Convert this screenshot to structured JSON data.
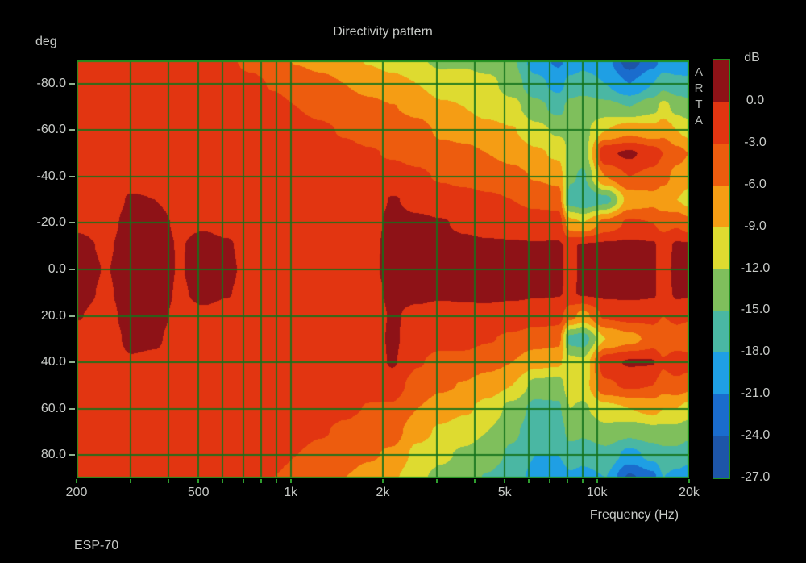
{
  "title": "Directivity pattern",
  "footer": "ESP-70",
  "watermark_letters": [
    "A",
    "R",
    "T",
    "A"
  ],
  "y_axis": {
    "unit": "deg",
    "ticks": [
      {
        "v": -80,
        "label": "-80.0"
      },
      {
        "v": -60,
        "label": "-60.0"
      },
      {
        "v": -40,
        "label": "-40.0"
      },
      {
        "v": -20,
        "label": "-20.0"
      },
      {
        "v": 0,
        "label": "0.0"
      },
      {
        "v": 20,
        "label": "20.0"
      },
      {
        "v": 40,
        "label": "40.0"
      },
      {
        "v": 60,
        "label": "60.0"
      },
      {
        "v": 80,
        "label": "80.0"
      }
    ]
  },
  "x_axis": {
    "label": "Frequency (Hz)",
    "ticks": [
      {
        "v": 200,
        "label": "200"
      },
      {
        "v": 500,
        "label": "500"
      },
      {
        "v": 1000,
        "label": "1k"
      },
      {
        "v": 2000,
        "label": "2k"
      },
      {
        "v": 5000,
        "label": "5k"
      },
      {
        "v": 10000,
        "label": "10k"
      },
      {
        "v": 20000,
        "label": "20k"
      }
    ]
  },
  "colorbar": {
    "unit": "dB",
    "tick_labels": [
      "0.0",
      "-3.0",
      "-6.0",
      "-9.0",
      "-12.0",
      "-15.0",
      "-18.0",
      "-21.0",
      "-24.0",
      "-27.0"
    ],
    "colors": [
      "#8e1217",
      "#e23511",
      "#ed5c0e",
      "#f59d14",
      "#dedb30",
      "#7fbf5c",
      "#4ab7a3",
      "#1f9fe4",
      "#1a6ccd",
      "#1d55a8"
    ]
  },
  "chart_data": {
    "type": "heatmap",
    "title": "Directivity pattern",
    "xlabel": "Frequency (Hz)",
    "ylabel": "deg",
    "zlabel": "dB",
    "x_scale": "log",
    "freq_range_hz": [
      200,
      20000
    ],
    "angle_range_deg": [
      -90,
      90
    ],
    "z_max_db": 3,
    "z_min_db": -27,
    "band_step_db": 3,
    "legend_position": "right",
    "grid": true,
    "grid_color": "#14721c",
    "frame_color": "#1f8f1f",
    "background": "#000000",
    "palette_hex": [
      "#8e1217",
      "#e23511",
      "#ed5c0e",
      "#f59d14",
      "#dedb30",
      "#7fbf5c",
      "#4ab7a3",
      "#1f9fe4",
      "#1a6ccd",
      "#1d55a8"
    ],
    "grid_lines_hz": [
      300,
      400,
      500,
      600,
      700,
      800,
      900,
      1000,
      2000,
      3000,
      4000,
      5000,
      6000,
      7000,
      8000,
      9000,
      10000
    ],
    "tick_marks_hz": [
      200,
      300,
      400,
      500,
      600,
      700,
      800,
      900,
      1000,
      2000,
      3000,
      4000,
      5000,
      6000,
      7000,
      8000,
      9000,
      10000,
      20000
    ],
    "grid_lines_deg": [
      -80,
      -60,
      -40,
      -20,
      0,
      20,
      40,
      60,
      80
    ],
    "angles_deg": [
      -90,
      -80,
      -70,
      -60,
      -50,
      -40,
      -30,
      -20,
      -10,
      0,
      10,
      20,
      30,
      40,
      50,
      60,
      70,
      80,
      90
    ],
    "frequencies_hz": [
      200,
      250,
      300,
      360,
      430,
      520,
      620,
      740,
      880,
      1050,
      1250,
      1500,
      1800,
      2150,
      2600,
      3100,
      3700,
      4400,
      5300,
      6300,
      7500,
      8200,
      9000,
      10700,
      12800,
      15300,
      16500,
      18300,
      20000
    ],
    "series_db": [
      [
        -1.5,
        -1.5,
        -1.5,
        -1.5,
        -1.5,
        -1.4,
        -1.1,
        -0.4,
        0.6,
        1.0,
        0.7,
        0.1,
        -0.8,
        -1.3,
        -1.5,
        -1.5,
        -1.5,
        -1.5,
        -1.5
      ],
      [
        -1.5,
        -1.5,
        -1.5,
        -1.5,
        -1.5,
        -1.4,
        -1.2,
        -0.8,
        -0.3,
        -0.1,
        -0.3,
        -0.7,
        -1.1,
        -1.4,
        -1.5,
        -1.5,
        -1.5,
        -1.5,
        -1.5
      ],
      [
        -1.5,
        -1.5,
        -1.5,
        -1.5,
        -1.3,
        -0.8,
        0.2,
        0.8,
        1.2,
        1.4,
        1.2,
        0.9,
        0.5,
        -0.2,
        -1.0,
        -1.4,
        -1.5,
        -1.5,
        -1.5
      ],
      [
        -1.5,
        -1.5,
        -1.5,
        -1.5,
        -1.3,
        -0.9,
        0.0,
        0.7,
        1.1,
        1.3,
        1.1,
        0.8,
        0.3,
        -0.4,
        -1.1,
        -1.4,
        -1.5,
        -1.5,
        -1.5
      ],
      [
        -1.5,
        -1.5,
        -1.5,
        -1.5,
        -1.4,
        -1.2,
        -0.7,
        -0.3,
        -0.1,
        -0.1,
        -0.2,
        -0.5,
        -0.9,
        -1.3,
        -1.5,
        -1.5,
        -1.5,
        -1.5,
        -1.5
      ],
      [
        -1.6,
        -1.5,
        -1.5,
        -1.5,
        -1.5,
        -1.3,
        -0.9,
        -0.2,
        0.5,
        0.7,
        0.4,
        -0.3,
        -1.0,
        -1.4,
        -1.5,
        -1.5,
        -1.5,
        -1.6,
        -1.7
      ],
      [
        -2.6,
        -1.8,
        -1.5,
        -1.5,
        -1.5,
        -1.4,
        -1.1,
        -0.5,
        0.2,
        0.4,
        0.1,
        -0.6,
        -1.2,
        -1.5,
        -1.5,
        -1.5,
        -1.6,
        -1.7,
        -1.9
      ],
      [
        -3.6,
        -2.4,
        -1.9,
        -1.6,
        -1.5,
        -1.5,
        -1.3,
        -1.0,
        -0.8,
        -0.7,
        -0.8,
        -1.0,
        -1.3,
        -1.5,
        -1.5,
        -1.6,
        -1.7,
        -2.0,
        -2.4
      ],
      [
        -4.8,
        -3.2,
        -2.3,
        -1.9,
        -1.6,
        -1.5,
        -1.4,
        -1.1,
        -0.9,
        -0.8,
        -0.9,
        -1.1,
        -1.3,
        -1.5,
        -1.6,
        -1.7,
        -1.9,
        -2.4,
        -3.0
      ],
      [
        -6.2,
        -4.2,
        -3.0,
        -2.2,
        -1.8,
        -1.6,
        -1.4,
        -1.2,
        -1.0,
        -0.9,
        -1.0,
        -1.2,
        -1.4,
        -1.6,
        -1.7,
        -1.9,
        -2.3,
        -3.0,
        -3.8
      ],
      [
        -7.0,
        -5.0,
        -3.6,
        -2.6,
        -2.0,
        -1.7,
        -1.5,
        -1.3,
        -1.1,
        -1.0,
        -1.1,
        -1.3,
        -1.5,
        -1.7,
        -1.9,
        -2.2,
        -2.8,
        -3.7,
        -4.8
      ],
      [
        -8.0,
        -6.0,
        -4.4,
        -3.2,
        -2.4,
        -1.9,
        -1.6,
        -1.4,
        -1.2,
        -1.1,
        -1.2,
        -1.4,
        -1.6,
        -1.8,
        -2.1,
        -2.6,
        -3.4,
        -4.6,
        -6.0
      ],
      [
        -9.2,
        -7.0,
        -5.2,
        -3.8,
        -2.8,
        -2.1,
        -1.7,
        -1.2,
        -0.8,
        -0.6,
        -0.8,
        -1.2,
        -1.5,
        -1.8,
        -2.4,
        -3.1,
        -4.2,
        -5.6,
        -7.3
      ],
      [
        -10.2,
        -7.9,
        -5.9,
        -4.4,
        -3.2,
        -2.0,
        0.2,
        0.8,
        0.9,
        0.8,
        0.4,
        0.2,
        0.4,
        0.3,
        -1.8,
        -3.3,
        -4.8,
        -6.5,
        -8.5
      ],
      [
        -11.6,
        -9.0,
        -6.8,
        -5.0,
        -3.8,
        -2.5,
        -0.8,
        0.5,
        0.9,
        0.9,
        0.5,
        -0.5,
        -1.6,
        -2.8,
        -4.2,
        -6.0,
        -8.0,
        -10.0,
        -11.5
      ],
      [
        -12.6,
        -10.5,
        -8.5,
        -6.5,
        -5.0,
        -3.3,
        -1.5,
        0.2,
        0.8,
        0.8,
        0.3,
        -0.8,
        -2.2,
        -3.8,
        -5.5,
        -7.5,
        -9.5,
        -11.5,
        -12.8
      ],
      [
        -12.5,
        -10.5,
        -9.0,
        -7.0,
        -5.3,
        -3.8,
        -2.0,
        -0.5,
        0.6,
        0.9,
        0.4,
        -0.6,
        -2.0,
        -4.0,
        -6.2,
        -8.5,
        -10.8,
        -12.5,
        -14.0
      ],
      [
        -13.5,
        -11.0,
        -10.2,
        -8.0,
        -6.0,
        -4.3,
        -2.5,
        -1.0,
        0.4,
        1.0,
        0.6,
        -0.8,
        -2.8,
        -5.0,
        -7.5,
        -10.0,
        -12.0,
        -13.8,
        -15.2
      ],
      [
        -14.5,
        -13.5,
        -11.0,
        -8.8,
        -6.8,
        -5.0,
        -3.0,
        -1.2,
        0.3,
        1.0,
        0.5,
        -1.2,
        -3.5,
        -6.0,
        -9.0,
        -13.0,
        -14.5,
        -15.5,
        -16.5
      ],
      [
        -19.5,
        -17.0,
        -14.0,
        -11.0,
        -8.5,
        -6.2,
        -3.8,
        -1.5,
        0.2,
        0.8,
        0.3,
        -1.5,
        -4.5,
        -8.0,
        -13.0,
        -16.0,
        -16.5,
        -18.0,
        -19.0
      ],
      [
        -21.5,
        -19.0,
        -16.0,
        -12.5,
        -9.5,
        -7.0,
        -4.2,
        -1.5,
        0.3,
        0.8,
        0.2,
        -1.8,
        -5.0,
        -8.5,
        -13.5,
        -15.5,
        -16.5,
        -18.0,
        -20.0
      ],
      [
        -20.0,
        -17.0,
        -14.0,
        -12.5,
        -13.0,
        -14.5,
        -16.5,
        -8.0,
        -0.5,
        -1.2,
        -0.5,
        -5.0,
        -16.0,
        -11.0,
        -10.0,
        -12.0,
        -14.0,
        -16.5,
        -18.5
      ],
      [
        -19.0,
        -16.5,
        -13.5,
        -13.0,
        -14.0,
        -15.5,
        -17.5,
        -9.0,
        0.4,
        1.0,
        0.5,
        -7.0,
        -16.5,
        -11.5,
        -10.5,
        -12.5,
        -14.5,
        -17.0,
        -19.0
      ],
      [
        -20.0,
        -18.0,
        -14.0,
        -9.0,
        -0.5,
        -6.0,
        -16.0,
        -5.0,
        0.6,
        1.0,
        0.6,
        -2.5,
        -9.0,
        -1.0,
        -3.5,
        -10.0,
        -13.0,
        -16.0,
        -18.0
      ],
      [
        -25.5,
        -21.0,
        -15.0,
        -7.0,
        0.5,
        -3.0,
        -8.0,
        -2.5,
        0.7,
        1.0,
        0.7,
        -2.0,
        -7.0,
        0.3,
        -2.5,
        -9.0,
        -14.0,
        -19.0,
        -24.5
      ],
      [
        -22.0,
        -18.0,
        -13.0,
        -8.0,
        -1.5,
        -4.0,
        -7.0,
        -3.0,
        0.4,
        0.5,
        0.4,
        -2.0,
        -5.0,
        0.2,
        -3.0,
        -8.0,
        -13.0,
        -17.0,
        -22.0
      ],
      [
        -20.0,
        -16.0,
        -11.0,
        -7.0,
        -3.0,
        -5.0,
        -8.0,
        -4.0,
        -1.2,
        -1.5,
        -1.2,
        -3.0,
        -6.0,
        -2.5,
        -4.5,
        -9.0,
        -13.0,
        -16.0,
        -18.0
      ],
      [
        -20.0,
        -17.0,
        -13.0,
        -9.0,
        -5.0,
        -7.0,
        -9.0,
        -3.5,
        0.5,
        1.0,
        0.5,
        -2.0,
        -5.0,
        -1.0,
        -4.0,
        -9.0,
        -13.0,
        -16.0,
        -19.0
      ],
      [
        -20.5,
        -17.0,
        -14.0,
        -10.0,
        -6.0,
        -8.0,
        -10.0,
        -5.0,
        0.4,
        1.0,
        0.4,
        -2.5,
        -5.5,
        -1.5,
        -5.0,
        -10.0,
        -14.0,
        -17.0,
        -19.5
      ]
    ]
  }
}
